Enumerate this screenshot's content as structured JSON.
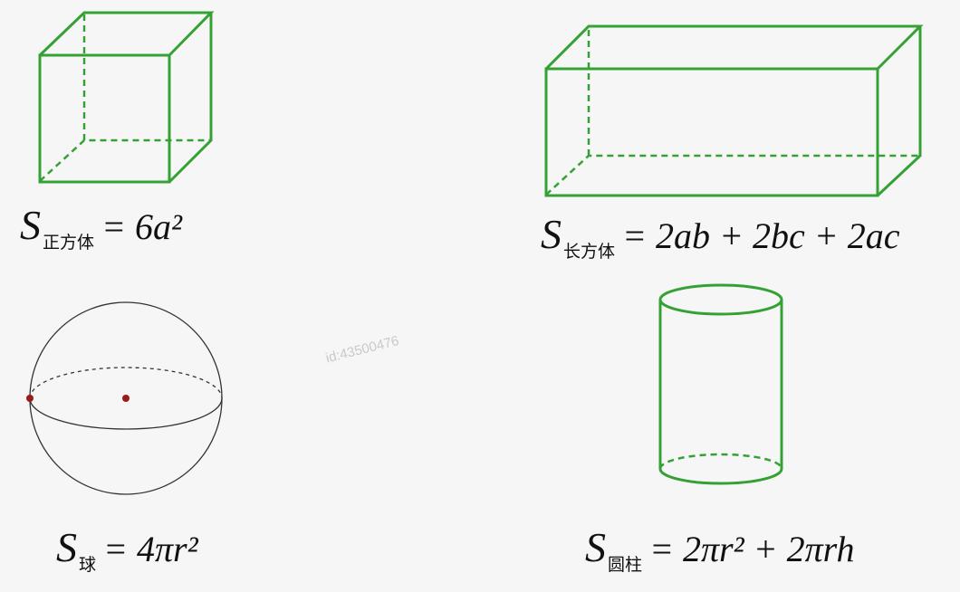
{
  "figures": {
    "cube": {
      "formula": {
        "symbol": "S",
        "subscript": "正方体",
        "rhs": "= 6a²"
      },
      "color": "#35a135"
    },
    "cuboid": {
      "formula": {
        "symbol": "S",
        "subscript": "长方体",
        "rhs": "= 2ab + 2bc + 2ac"
      },
      "color": "#35a135"
    },
    "sphere": {
      "formula": {
        "symbol": "S",
        "subscript": "球",
        "rhs": "= 4πr²"
      },
      "color": "#333333",
      "point_color": "#9b1b1b"
    },
    "cylinder": {
      "formula": {
        "symbol": "S",
        "subscript": "圆柱",
        "rhs": "= 2πr² + 2πrh"
      },
      "color": "#35a135"
    }
  },
  "watermark": "id:43500476"
}
